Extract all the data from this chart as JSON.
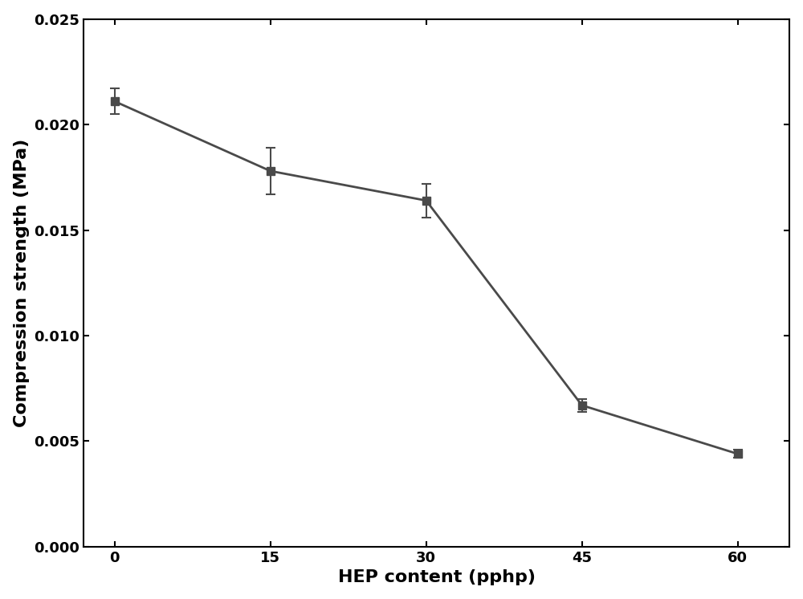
{
  "x": [
    0,
    15,
    30,
    45,
    60
  ],
  "y": [
    0.0211,
    0.0178,
    0.0164,
    0.0067,
    0.0044
  ],
  "yerr": [
    0.0006,
    0.0011,
    0.0008,
    0.0003,
    0.0002
  ],
  "xlabel": "HEP content (pphp)",
  "ylabel": "Compression strength (MPa)",
  "xlim": [
    -3,
    65
  ],
  "ylim": [
    0.0,
    0.025
  ],
  "yticks": [
    0.0,
    0.005,
    0.01,
    0.015,
    0.02,
    0.025
  ],
  "xticks": [
    0,
    15,
    30,
    45,
    60
  ],
  "line_color": "#4a4a4a",
  "marker_color": "#4a4a4a",
  "markersize": 7,
  "linewidth": 2.0,
  "capsize": 4,
  "capthick": 1.5,
  "elinewidth": 1.5,
  "xlabel_fontsize": 16,
  "ylabel_fontsize": 16,
  "tick_fontsize": 13,
  "xlabel_fontweight": "bold",
  "ylabel_fontweight": "bold",
  "spine_linewidth": 1.5,
  "figsize": [
    10.0,
    7.46
  ],
  "dpi": 100
}
